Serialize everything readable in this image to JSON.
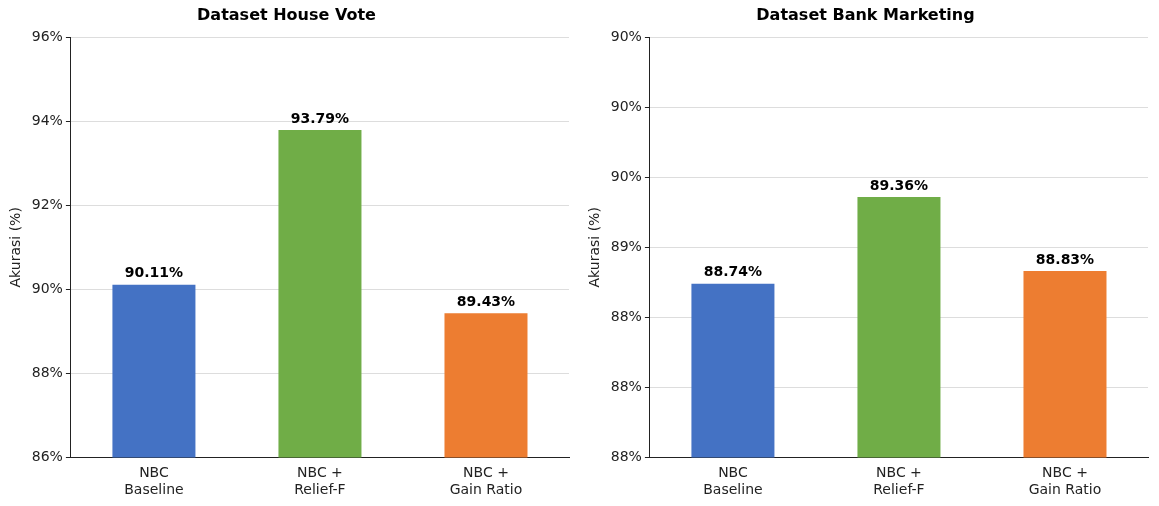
{
  "chart_data": [
    {
      "type": "bar",
      "title": "Dataset House Vote",
      "ylabel": "Akurasi (%)",
      "categories": [
        "NBC\nBaseline",
        "NBC +\nRelief-F",
        "NBC +\nGain Ratio"
      ],
      "values": [
        90.11,
        93.79,
        89.43
      ],
      "colors": [
        "#4472c4",
        "#70ad47",
        "#ed7d31"
      ],
      "value_labels": [
        "90.11%",
        "93.79%",
        "89.43%"
      ],
      "ylim": [
        86,
        96
      ],
      "yticks": [
        {
          "value": 86,
          "label": "86%"
        },
        {
          "value": 88,
          "label": "88%"
        },
        {
          "value": 90,
          "label": "90%"
        },
        {
          "value": 92,
          "label": "92%"
        },
        {
          "value": 94,
          "label": "94%"
        },
        {
          "value": 96,
          "label": "96%"
        }
      ],
      "grid": "y"
    },
    {
      "type": "bar",
      "title": "Dataset Bank Marketing",
      "ylabel": "Akurasi (%)",
      "categories": [
        "NBC\nBaseline",
        "NBC +\nRelief-F",
        "NBC +\nGain Ratio"
      ],
      "values": [
        88.74,
        89.36,
        88.83
      ],
      "colors": [
        "#4472c4",
        "#70ad47",
        "#ed7d31"
      ],
      "value_labels": [
        "88.74%",
        "89.36%",
        "88.83%"
      ],
      "ylim": [
        87.5,
        90.5
      ],
      "yticks": [
        {
          "value": 87.5,
          "label": "88%"
        },
        {
          "value": 88,
          "label": "88%"
        },
        {
          "value": 88.5,
          "label": "88%"
        },
        {
          "value": 89,
          "label": "89%"
        },
        {
          "value": 89.5,
          "label": "90%"
        },
        {
          "value": 90,
          "label": "90%"
        },
        {
          "value": 90.5,
          "label": "90%"
        }
      ],
      "grid": "y"
    }
  ]
}
